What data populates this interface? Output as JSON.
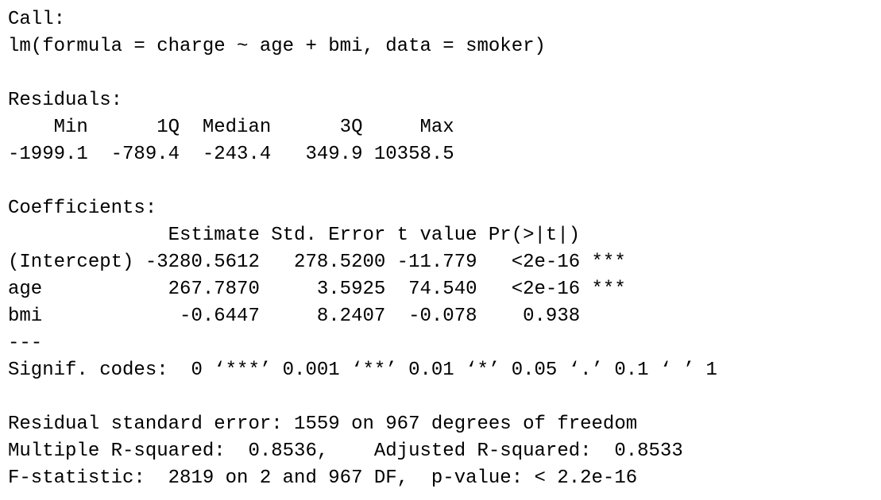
{
  "console": {
    "blocks": [
      {
        "name": "call",
        "lines": [
          "Call:",
          "lm(formula = charge ~ age + bmi, data = smoker)"
        ]
      },
      {
        "name": "residuals",
        "lines": [
          "Residuals:",
          "    Min      1Q  Median      3Q     Max",
          "-1999.1  -789.4  -243.4   349.9 10358.5"
        ]
      },
      {
        "name": "coefficients",
        "lines": [
          "Coefficients:",
          "              Estimate Std. Error t value Pr(>|t|)",
          "(Intercept) -3280.5612   278.5200 -11.779   <2e-16 ***",
          "age           267.7870     3.5925  74.540   <2e-16 ***",
          "bmi            -0.6447     8.2407  -0.078    0.938",
          "---",
          "Signif. codes:  0 ‘***’ 0.001 ‘**’ 0.01 ‘*’ 0.05 ‘.’ 0.1 ‘ ’ 1"
        ]
      },
      {
        "name": "summary",
        "lines": [
          "Residual standard error: 1559 on 967 degrees of freedom",
          "Multiple R-squared:  0.8536,    Adjusted R-squared:  0.8533",
          "F-statistic:  2819 on 2 and 967 DF,  p-value: < 2.2e-16"
        ]
      }
    ]
  }
}
